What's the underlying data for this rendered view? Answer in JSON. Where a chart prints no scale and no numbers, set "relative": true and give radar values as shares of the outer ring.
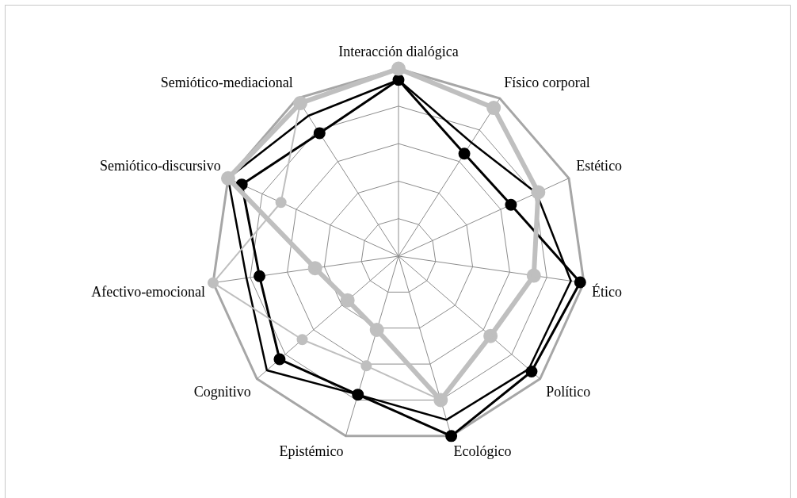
{
  "chart_data": {
    "type": "radar",
    "relative": true,
    "grid": true,
    "legend": false,
    "categories": [
      "Interacción dialógica",
      "Físico corporal",
      "Estético",
      "Ético",
      "Político",
      "Ecológico",
      "Epistémico",
      "Cognitivo",
      "Afectivo-emocional",
      "Semiótico-discursivo",
      "Semiótico-mediacional"
    ],
    "series": [
      {
        "color": "#bfbfbf",
        "marker": "circle",
        "values": [
          1.0,
          0.94,
          0.82,
          0.73,
          0.65,
          0.8,
          0.41,
          0.36,
          0.45,
          1.0,
          0.97
        ]
      },
      {
        "color": "#bfbfbf",
        "marker": "circle",
        "values": [
          1.0,
          0.94,
          0.82,
          0.73,
          0.65,
          0.8,
          0.61,
          0.68,
          1.0,
          0.69,
          0.97
        ]
      },
      {
        "color": "#000000",
        "marker": "none",
        "values": [
          0.94,
          0.72,
          0.81,
          0.93,
          0.92,
          0.91,
          0.77,
          0.93,
          0.82,
          1.0,
          0.89
        ]
      },
      {
        "color": "#000000",
        "marker": "circle",
        "values": [
          0.94,
          0.65,
          0.66,
          0.98,
          0.94,
          1.0,
          0.77,
          0.84,
          0.75,
          0.92,
          0.78
        ]
      }
    ]
  }
}
